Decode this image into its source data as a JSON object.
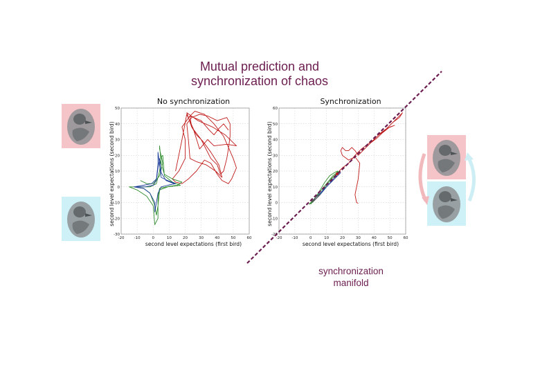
{
  "colors": {
    "title": "#6b1d4f",
    "red_series": "#c01a1a",
    "green_series": "#2e8b2e",
    "blue_series": "#1f3f9a",
    "gray_series": "#555555",
    "manifold": "#6b1d4f",
    "bird_top_bg": "#f4c4c8",
    "bird_bottom_bg": "#cdf1f6"
  },
  "slide": {
    "title_line1": "Mutual prediction and",
    "title_line2": "synchronization of chaos",
    "manifold_line1": "synchronization",
    "manifold_line2": "manifold"
  },
  "icons": {
    "bird_top": "bird-portrait-icon",
    "bird_bottom": "bird-portrait-icon",
    "cycle_arrows": "cycle-arrows-icon"
  },
  "chart_data": [
    {
      "type": "line",
      "title": "No synchronization",
      "xlabel": "second level expectations (first bird)",
      "ylabel": "second level expectations (second bird)",
      "xlim": [
        -20,
        60
      ],
      "ylim": [
        -30,
        50
      ],
      "xticks": [
        -20,
        -10,
        0,
        10,
        20,
        30,
        40,
        50,
        60
      ],
      "yticks": [
        -30,
        -20,
        -10,
        0,
        10,
        20,
        30,
        40,
        50
      ],
      "xtick_labels": [
        "-20",
        "-10",
        "0",
        "10",
        "20",
        "30",
        "40",
        "50",
        "60"
      ],
      "ytick_labels": [
        "-30",
        "-20",
        "-10",
        "0",
        "10",
        "20",
        "30",
        "40",
        "50"
      ],
      "grid": true,
      "series": [
        {
          "name": "red trajectory",
          "color": "#c01a1a",
          "points": [
            [
              14,
              10
            ],
            [
              18,
              30
            ],
            [
              21,
              46
            ],
            [
              25,
              37
            ],
            [
              29,
              24
            ],
            [
              34,
              30
            ],
            [
              38,
              26
            ],
            [
              46,
              27
            ],
            [
              52,
              26
            ],
            [
              45,
              33
            ],
            [
              37,
              38
            ],
            [
              28,
              42
            ],
            [
              21,
              47
            ],
            [
              24,
              38
            ],
            [
              30,
              30
            ],
            [
              36,
              18
            ],
            [
              40,
              14
            ],
            [
              42,
              8
            ],
            [
              44,
              10
            ],
            [
              46,
              18
            ],
            [
              47,
              24
            ],
            [
              48,
              32
            ],
            [
              48,
              40
            ],
            [
              46,
              44
            ],
            [
              40,
              42
            ],
            [
              34,
              45
            ],
            [
              29,
              46
            ],
            [
              24,
              44
            ],
            [
              21,
              40
            ],
            [
              22,
              30
            ],
            [
              23,
              18
            ],
            [
              27,
              16
            ],
            [
              33,
              14
            ],
            [
              39,
              10
            ],
            [
              43,
              6
            ],
            [
              41,
              14
            ],
            [
              36,
              22
            ],
            [
              31,
              29
            ],
            [
              27,
              33
            ],
            [
              24,
              38
            ],
            [
              23,
              45
            ],
            [
              26,
              48
            ],
            [
              32,
              46
            ],
            [
              38,
              40
            ],
            [
              44,
              32
            ],
            [
              50,
              18
            ],
            [
              52,
              12
            ],
            [
              49,
              5
            ],
            [
              47,
              2
            ],
            [
              43,
              4
            ],
            [
              40,
              8
            ],
            [
              36,
              15
            ],
            [
              32,
              17
            ],
            [
              27,
              10
            ],
            [
              22,
              5
            ],
            [
              18,
              2
            ],
            [
              14,
              3
            ],
            [
              12,
              5
            ],
            [
              16,
              10
            ],
            [
              20,
              18
            ],
            [
              20,
              30
            ],
            [
              18,
              38
            ],
            [
              23,
              45
            ],
            [
              30,
              42
            ],
            [
              35,
              36
            ],
            [
              38,
              33
            ],
            [
              41,
              37
            ],
            [
              44,
              40
            ],
            [
              47,
              36
            ]
          ]
        },
        {
          "name": "green trajectory",
          "color": "#2e8b2e",
          "points": [
            [
              -8,
              4
            ],
            [
              -4,
              2
            ],
            [
              0,
              2
            ],
            [
              4,
              7
            ],
            [
              6,
              15
            ],
            [
              4,
              24
            ],
            [
              4,
              26
            ],
            [
              5,
              15
            ],
            [
              7,
              8
            ],
            [
              12,
              5
            ],
            [
              18,
              3
            ],
            [
              15,
              1
            ],
            [
              8,
              0
            ],
            [
              4,
              -1
            ],
            [
              3,
              -6
            ],
            [
              3,
              -20
            ],
            [
              1,
              -24
            ],
            [
              0,
              -12
            ],
            [
              -4,
              -6
            ],
            [
              -10,
              -2
            ],
            [
              -15,
              0
            ],
            [
              -8,
              0
            ],
            [
              -2,
              0
            ],
            [
              2,
              2
            ],
            [
              4,
              10
            ],
            [
              5,
              19
            ],
            [
              6,
              20
            ],
            [
              7,
              7
            ],
            [
              12,
              3
            ],
            [
              17,
              1
            ],
            [
              9,
              0
            ],
            [
              4,
              -2
            ],
            [
              3,
              -12
            ],
            [
              2,
              -18
            ],
            [
              1,
              -12
            ],
            [
              -2,
              -4
            ],
            [
              -6,
              -1
            ],
            [
              -12,
              0
            ]
          ]
        },
        {
          "name": "blue trajectory",
          "color": "#1f3f9a",
          "points": [
            [
              -12,
              0
            ],
            [
              -6,
              1
            ],
            [
              -1,
              2
            ],
            [
              2,
              5
            ],
            [
              3,
              14
            ],
            [
              3,
              22
            ],
            [
              4,
              14
            ],
            [
              5,
              6
            ],
            [
              9,
              4
            ],
            [
              14,
              2
            ],
            [
              9,
              1
            ],
            [
              5,
              0
            ],
            [
              3,
              -4
            ],
            [
              2,
              -10
            ],
            [
              1,
              -16
            ],
            [
              1,
              -10
            ],
            [
              -2,
              -4
            ],
            [
              -6,
              -1
            ],
            [
              -12,
              0
            ],
            [
              -5,
              0
            ],
            [
              0,
              1
            ],
            [
              2,
              4
            ],
            [
              3,
              12
            ],
            [
              4,
              18
            ],
            [
              5,
              9
            ],
            [
              8,
              4
            ],
            [
              13,
              2
            ]
          ]
        }
      ]
    },
    {
      "type": "line",
      "title": "Synchronization",
      "xlabel": "second level expectations (first bird)",
      "ylabel": "second level expectations (second bird)",
      "xlim": [
        -20,
        60
      ],
      "ylim": [
        -20,
        60
      ],
      "xticks": [
        -20,
        -10,
        0,
        10,
        20,
        30,
        40,
        50,
        60
      ],
      "yticks": [
        -20,
        -10,
        0,
        10,
        20,
        30,
        40,
        50,
        60
      ],
      "xtick_labels": [
        "-20",
        "-10",
        "0",
        "10",
        "20",
        "30",
        "40",
        "50",
        "60"
      ],
      "ytick_labels": [
        "-20",
        "-10",
        "0",
        "10",
        "20",
        "30",
        "40",
        "50",
        "60"
      ],
      "grid": true,
      "series": [
        {
          "name": "red trajectory",
          "color": "#c01a1a",
          "points": [
            [
              13,
              15
            ],
            [
              17,
              19
            ],
            [
              20,
              22
            ],
            [
              24,
              25
            ],
            [
              28,
              30
            ],
            [
              32,
              34
            ],
            [
              36,
              37
            ],
            [
              40,
              40
            ],
            [
              44,
              44
            ],
            [
              48,
              47
            ],
            [
              52,
              51
            ],
            [
              56,
              54
            ],
            [
              58,
              57
            ],
            [
              54,
              53
            ],
            [
              50,
              49
            ],
            [
              46,
              45
            ],
            [
              43,
              43
            ],
            [
              48,
              47
            ],
            [
              53,
              49
            ],
            [
              50,
              48
            ],
            [
              45,
              44
            ],
            [
              42,
              41
            ],
            [
              38,
              38
            ],
            [
              34,
              34
            ],
            [
              30,
              30
            ],
            [
              28,
              33
            ],
            [
              26,
              35
            ],
            [
              24,
              33
            ],
            [
              22,
              33
            ],
            [
              20,
              35
            ],
            [
              19,
              33
            ],
            [
              20,
              30
            ],
            [
              24,
              27
            ],
            [
              28,
              29
            ],
            [
              31,
              25
            ],
            [
              30,
              15
            ],
            [
              28,
              5
            ],
            [
              29,
              0
            ],
            [
              30,
              -0.5
            ]
          ]
        },
        {
          "name": "green trajectory",
          "color": "#2e8b2e",
          "points": [
            [
              0,
              -1
            ],
            [
              3,
              3
            ],
            [
              6,
              8
            ],
            [
              9,
              13
            ],
            [
              12,
              17
            ],
            [
              15,
              19
            ],
            [
              17,
              20
            ],
            [
              16,
              18
            ],
            [
              13,
              15
            ],
            [
              10,
              11
            ],
            [
              7,
              7
            ],
            [
              4,
              3
            ],
            [
              1,
              0
            ],
            [
              -1,
              -1
            ],
            [
              2,
              2
            ],
            [
              6,
              7
            ],
            [
              10,
              12
            ],
            [
              14,
              17
            ],
            [
              18,
              20
            ]
          ]
        },
        {
          "name": "blue trajectory",
          "color": "#1f3f9a",
          "points": [
            [
              2,
              1
            ],
            [
              6,
              5
            ],
            [
              10,
              10
            ],
            [
              14,
              14
            ],
            [
              17,
              17
            ],
            [
              15,
              16
            ],
            [
              11,
              11
            ],
            [
              7,
              7
            ],
            [
              3,
              3
            ],
            [
              1,
              1
            ],
            [
              5,
              5
            ],
            [
              9,
              9
            ],
            [
              13,
              13
            ],
            [
              17,
              17
            ],
            [
              19,
              19
            ]
          ]
        },
        {
          "name": "gray trajectory",
          "color": "#555555",
          "points": [
            [
              0,
              0
            ],
            [
              2,
              1
            ],
            [
              4,
              3
            ],
            [
              6,
              5
            ],
            [
              4,
              4
            ],
            [
              2,
              2
            ],
            [
              0,
              1
            ],
            [
              1,
              1
            ],
            [
              3,
              2
            ],
            [
              5,
              4
            ]
          ]
        }
      ]
    }
  ]
}
